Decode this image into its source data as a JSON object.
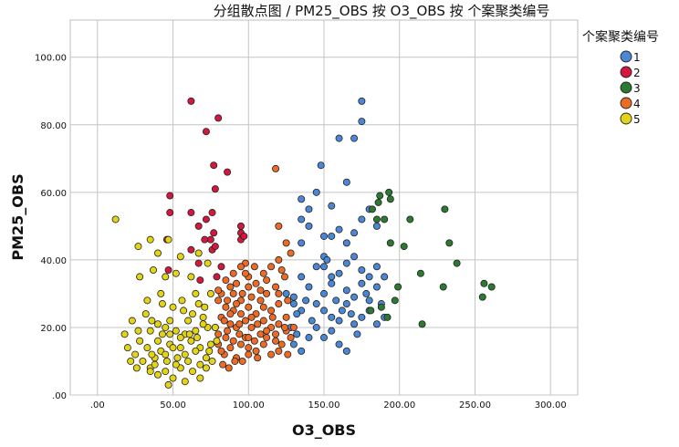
{
  "chart_data": {
    "type": "scatter",
    "title": "分组散点图 / PM25_OBS 按 O3_OBS 按 个案聚类编号",
    "xlabel": "O3_OBS",
    "ylabel": "PM25_OBS",
    "xlim": [
      -18,
      318
    ],
    "ylim": [
      0,
      111
    ],
    "x_ticks": [
      0,
      50,
      100,
      150,
      200,
      250,
      300
    ],
    "x_tick_labels": [
      ".00",
      "50.00",
      "100.00",
      "150.00",
      "200.00",
      "250.00",
      "300.00"
    ],
    "y_ticks": [
      0,
      20,
      40,
      60,
      80,
      100
    ],
    "y_tick_labels": [
      ".00",
      "20.00",
      "40.00",
      "60.00",
      "80.00",
      "100.00"
    ],
    "grid": true,
    "legend_title": "个案聚类编号",
    "legend_position": "top-right",
    "series": [
      {
        "name": "1",
        "color": "#4a88d6",
        "points": [
          [
            175,
            87
          ],
          [
            175,
            81
          ],
          [
            160,
            76
          ],
          [
            170,
            76
          ],
          [
            148,
            68
          ],
          [
            165,
            63
          ],
          [
            145,
            60
          ],
          [
            135,
            58
          ],
          [
            140,
            55
          ],
          [
            155,
            56
          ],
          [
            135,
            52
          ],
          [
            140,
            50
          ],
          [
            150,
            47
          ],
          [
            155,
            47
          ],
          [
            135,
            45
          ],
          [
            160,
            49
          ],
          [
            170,
            48
          ],
          [
            175,
            52
          ],
          [
            180,
            55
          ],
          [
            185,
            50
          ],
          [
            165,
            45
          ],
          [
            170,
            41
          ],
          [
            150,
            41
          ],
          [
            145,
            38
          ],
          [
            160,
            36
          ],
          [
            165,
            39
          ],
          [
            175,
            37
          ],
          [
            180,
            35
          ],
          [
            185,
            38
          ],
          [
            190,
            35
          ],
          [
            135,
            35
          ],
          [
            140,
            32
          ],
          [
            150,
            30
          ],
          [
            155,
            33
          ],
          [
            165,
            31
          ],
          [
            170,
            29
          ],
          [
            175,
            33
          ],
          [
            180,
            28
          ],
          [
            185,
            32
          ],
          [
            145,
            27
          ],
          [
            150,
            25
          ],
          [
            155,
            23
          ],
          [
            160,
            22
          ],
          [
            165,
            27
          ],
          [
            170,
            21
          ],
          [
            175,
            23
          ],
          [
            180,
            25
          ],
          [
            185,
            21
          ],
          [
            190,
            23
          ],
          [
            145,
            20
          ],
          [
            150,
            17
          ],
          [
            155,
            19
          ],
          [
            160,
            15
          ],
          [
            165,
            13
          ],
          [
            130,
            15
          ],
          [
            135,
            13
          ],
          [
            140,
            17
          ],
          [
            130,
            27
          ],
          [
            135,
            25
          ],
          [
            125,
            30
          ],
          [
            128,
            20
          ],
          [
            132,
            18
          ],
          [
            150,
            38
          ],
          [
            155,
            35
          ],
          [
            162,
            25
          ],
          [
            168,
            24
          ],
          [
            172,
            18
          ],
          [
            178,
            30
          ],
          [
            142,
            22
          ],
          [
            138,
            28
          ],
          [
            188,
            27
          ],
          [
            130,
            29
          ],
          [
            132,
            24
          ],
          [
            152,
            40
          ],
          [
            158,
            28
          ]
        ]
      },
      {
        "name": "2",
        "color": "#d4173c",
        "points": [
          [
            62,
            87
          ],
          [
            80,
            82
          ],
          [
            72,
            78
          ],
          [
            77,
            68
          ],
          [
            86,
            66
          ],
          [
            78,
            61
          ],
          [
            48,
            59
          ],
          [
            48,
            54
          ],
          [
            62,
            54
          ],
          [
            72,
            52
          ],
          [
            67,
            50
          ],
          [
            95,
            50
          ],
          [
            77,
            48
          ],
          [
            95,
            48
          ],
          [
            46,
            46
          ],
          [
            71,
            46
          ],
          [
            75,
            46
          ],
          [
            95,
            46
          ],
          [
            62,
            43
          ],
          [
            76,
            43
          ],
          [
            67,
            39
          ],
          [
            68,
            34
          ],
          [
            82,
            38
          ],
          [
            79,
            35
          ],
          [
            97,
            47
          ],
          [
            47,
            37
          ],
          [
            76,
            54
          ],
          [
            78,
            44
          ]
        ]
      },
      {
        "name": "3",
        "color": "#2b7a30",
        "points": [
          [
            187,
            59
          ],
          [
            193,
            60
          ],
          [
            194,
            58
          ],
          [
            186,
            57
          ],
          [
            182,
            55
          ],
          [
            185,
            52
          ],
          [
            190,
            52
          ],
          [
            207,
            52
          ],
          [
            230,
            55
          ],
          [
            233,
            45
          ],
          [
            203,
            44
          ],
          [
            194,
            45
          ],
          [
            238,
            39
          ],
          [
            214,
            36
          ],
          [
            256,
            33
          ],
          [
            261,
            32
          ],
          [
            229,
            32
          ],
          [
            199,
            32
          ],
          [
            197,
            28
          ],
          [
            255,
            29
          ],
          [
            188,
            26
          ],
          [
            192,
            23
          ],
          [
            215,
            21
          ],
          [
            181,
            25
          ]
        ]
      },
      {
        "name": "4",
        "color": "#ee6b26",
        "points": [
          [
            118,
            67
          ],
          [
            120,
            50
          ],
          [
            125,
            45
          ],
          [
            128,
            42
          ],
          [
            120,
            40
          ],
          [
            115,
            38
          ],
          [
            122,
            37
          ],
          [
            110,
            36
          ],
          [
            100,
            35
          ],
          [
            105,
            33
          ],
          [
            112,
            30
          ],
          [
            118,
            32
          ],
          [
            98,
            39
          ],
          [
            95,
            38
          ],
          [
            90,
            36
          ],
          [
            88,
            32
          ],
          [
            85,
            34
          ],
          [
            82,
            30
          ],
          [
            80,
            28
          ],
          [
            90,
            30
          ],
          [
            95,
            28
          ],
          [
            100,
            32
          ],
          [
            108,
            28
          ],
          [
            115,
            25
          ],
          [
            120,
            27
          ],
          [
            125,
            23
          ],
          [
            85,
            26
          ],
          [
            90,
            25
          ],
          [
            95,
            24
          ],
          [
            100,
            26
          ],
          [
            105,
            24
          ],
          [
            110,
            22
          ],
          [
            115,
            20
          ],
          [
            120,
            21
          ],
          [
            125,
            19
          ],
          [
            82,
            23
          ],
          [
            88,
            21
          ],
          [
            92,
            20
          ],
          [
            98,
            22
          ],
          [
            102,
            20
          ],
          [
            108,
            18
          ],
          [
            112,
            17
          ],
          [
            118,
            16
          ],
          [
            122,
            15
          ],
          [
            128,
            17
          ],
          [
            80,
            18
          ],
          [
            85,
            17
          ],
          [
            90,
            16
          ],
          [
            95,
            15
          ],
          [
            100,
            14
          ],
          [
            105,
            13
          ],
          [
            110,
            15
          ],
          [
            115,
            12
          ],
          [
            120,
            13
          ],
          [
            84,
            12
          ],
          [
            88,
            14
          ],
          [
            92,
            11
          ],
          [
            96,
            10
          ],
          [
            100,
            12
          ],
          [
            83,
            9
          ],
          [
            87,
            8
          ],
          [
            91,
            10
          ],
          [
            78,
            20
          ],
          [
            80,
            15
          ],
          [
            82,
            13
          ],
          [
            86,
            19
          ],
          [
            94,
            18
          ],
          [
            98,
            17
          ],
          [
            104,
            16
          ],
          [
            106,
            21
          ],
          [
            112,
            19
          ],
          [
            116,
            23
          ],
          [
            102,
            29
          ],
          [
            108,
            31
          ],
          [
            96,
            30
          ],
          [
            92,
            27
          ],
          [
            88,
            24
          ],
          [
            84,
            22
          ],
          [
            98,
            36
          ],
          [
            104,
            38
          ],
          [
            112,
            34
          ],
          [
            126,
            28
          ],
          [
            124,
            35
          ],
          [
            80,
            31
          ],
          [
            92,
            33
          ],
          [
            102,
            23
          ],
          [
            110,
            26
          ],
          [
            118,
            18
          ],
          [
            124,
            20
          ],
          [
            86,
            28
          ],
          [
            94,
            21
          ],
          [
            100,
            17
          ],
          [
            106,
            11
          ],
          [
            126,
            12
          ],
          [
            130,
            20
          ],
          [
            120,
            30
          ]
        ]
      },
      {
        "name": "5",
        "color": "#e3d417",
        "points": [
          [
            12,
            52
          ],
          [
            35,
            46
          ],
          [
            47,
            46
          ],
          [
            27,
            44
          ],
          [
            40,
            42
          ],
          [
            55,
            41
          ],
          [
            67,
            42
          ],
          [
            73,
            39
          ],
          [
            37,
            37
          ],
          [
            45,
            35
          ],
          [
            52,
            36
          ],
          [
            62,
            35
          ],
          [
            28,
            35
          ],
          [
            42,
            30
          ],
          [
            65,
            30
          ],
          [
            75,
            30
          ],
          [
            33,
            28
          ],
          [
            56,
            28
          ],
          [
            67,
            27
          ],
          [
            43,
            27
          ],
          [
            23,
            22
          ],
          [
            36,
            22
          ],
          [
            48,
            22
          ],
          [
            60,
            22
          ],
          [
            70,
            23
          ],
          [
            18,
            18
          ],
          [
            27,
            19
          ],
          [
            35,
            19
          ],
          [
            45,
            20
          ],
          [
            52,
            19
          ],
          [
            58,
            18
          ],
          [
            65,
            19
          ],
          [
            73,
            20
          ],
          [
            28,
            16
          ],
          [
            40,
            16
          ],
          [
            48,
            15
          ],
          [
            55,
            17
          ],
          [
            62,
            16
          ],
          [
            68,
            14
          ],
          [
            75,
            15
          ],
          [
            33,
            14
          ],
          [
            42,
            13
          ],
          [
            50,
            14
          ],
          [
            58,
            12
          ],
          [
            65,
            13
          ],
          [
            72,
            11
          ],
          [
            25,
            12
          ],
          [
            30,
            10
          ],
          [
            38,
            11
          ],
          [
            46,
            10
          ],
          [
            53,
            11
          ],
          [
            60,
            10
          ],
          [
            68,
            9
          ],
          [
            76,
            10
          ],
          [
            22,
            10
          ],
          [
            35,
            8
          ],
          [
            45,
            7
          ],
          [
            55,
            8
          ],
          [
            63,
            7
          ],
          [
            35,
            7
          ],
          [
            40,
            6
          ],
          [
            50,
            5
          ],
          [
            58,
            4
          ],
          [
            68,
            5
          ],
          [
            72,
            8
          ],
          [
            47,
            3
          ],
          [
            38,
            9
          ],
          [
            43,
            18
          ],
          [
            57,
            25
          ],
          [
            63,
            24
          ],
          [
            71,
            26
          ],
          [
            32,
            24
          ],
          [
            50,
            26
          ],
          [
            78,
            20
          ],
          [
            79,
            16
          ],
          [
            20,
            14
          ],
          [
            26,
            8
          ],
          [
            55,
            14
          ],
          [
            45,
            12
          ],
          [
            66,
            17
          ],
          [
            70,
            21
          ],
          [
            36,
            12
          ],
          [
            52,
            9
          ],
          [
            61,
            18
          ],
          [
            74,
            13
          ],
          [
            40,
            21
          ],
          [
            48,
            18
          ]
        ]
      }
    ]
  }
}
